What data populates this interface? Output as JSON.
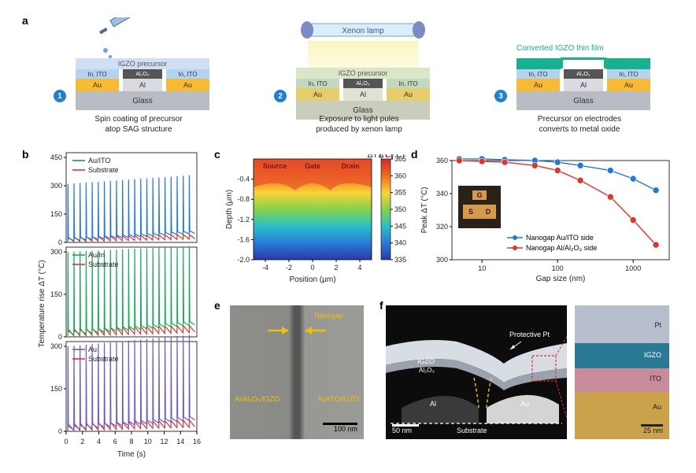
{
  "panel_labels": {
    "a": "a",
    "b": "b",
    "c": "c",
    "d": "d",
    "e": "e",
    "f": "f"
  },
  "a": {
    "step1": {
      "num": "1",
      "caption": "Spin coating of precursor\natop SAG structure",
      "layers": {
        "precursor": "IGZO precursor",
        "inito": "In, ITO",
        "alo": "Al₂O₃",
        "au": "Au",
        "al": "Al",
        "glass": "Glass"
      }
    },
    "step2": {
      "num": "2",
      "caption": "Exposure to light pules\nproduced by xenon lamp",
      "xenon": "Xenon lamp",
      "layers": {
        "precursor": "IGZO precursor",
        "inito": "In, ITO",
        "alo": "Al₂O₃",
        "au": "Au",
        "al": "Al",
        "glass": "Glass"
      }
    },
    "step3": {
      "num": "3",
      "caption": "Precursor on electrodes\nconverts to metal oxide",
      "converted": "Converted IGZO thin film",
      "layers": {
        "inito": "In, ITO",
        "alo": "Al₂O₃",
        "au": "Au",
        "al": "Al",
        "glass": "Glass"
      }
    }
  },
  "b": {
    "xlabel": "Time (s)",
    "ylabel": "Temperature rise ΔT (°C)",
    "x_ticks": [
      0,
      2,
      4,
      6,
      8,
      10,
      12,
      14,
      16
    ],
    "subplots": [
      {
        "legend1": "Au/ITO",
        "legend2": "Substrate",
        "color1": "#1f77e0",
        "color2": "#e0342c",
        "ylim": [
          0,
          450
        ],
        "yticks": [
          0,
          150,
          300,
          450
        ],
        "baseline_start": 10,
        "baseline_end": 48,
        "peak_start": 310,
        "peak_end": 355
      },
      {
        "legend1": "Au/In",
        "legend2": "Substrate",
        "color1": "#1aa85a",
        "color2": "#e0342c",
        "ylim": [
          0,
          300
        ],
        "yticks": [
          0,
          150,
          300
        ],
        "baseline_start": 8,
        "baseline_end": 42,
        "peak_start": 300,
        "peak_end": 320
      },
      {
        "legend1": "Au",
        "legend2": "Substrate",
        "color1": "#6a5ad0",
        "color2": "#e0342c",
        "ylim": [
          0,
          300
        ],
        "yticks": [
          0,
          150,
          300
        ],
        "baseline_start": 6,
        "baseline_end": 40,
        "peak_start": 300,
        "peak_end": 340
      }
    ],
    "n_pulses": 21,
    "line_width": 1.2
  },
  "c": {
    "title": "ΔT (°C)",
    "xlabel": "Position (μm)",
    "ylabel": "Depth (μm)",
    "x_ticks": [
      -4,
      -2,
      0,
      2,
      4
    ],
    "y_ticks": [
      -0.4,
      -0.8,
      -1.2,
      -1.6,
      -2.0
    ],
    "annotations": [
      "Source",
      "Gate",
      "Drain"
    ],
    "colorbar": {
      "min": 335,
      "max": 365,
      "stops": [
        {
          "v": 365,
          "c": "#d7262a"
        },
        {
          "v": 360,
          "c": "#f26a1f"
        },
        {
          "v": 355,
          "c": "#fbd335"
        },
        {
          "v": 350,
          "c": "#86d24a"
        },
        {
          "v": 345,
          "c": "#29c1c8"
        },
        {
          "v": 340,
          "c": "#2a7bd6"
        },
        {
          "v": 335,
          "c": "#2b3aa8"
        }
      ],
      "ticks": [
        335,
        340,
        345,
        350,
        355,
        360,
        365
      ]
    }
  },
  "d": {
    "xlabel": "Gap size (nm)",
    "ylabel": "Peak ΔT (°C)",
    "xscale": "log",
    "x_ticks": [
      10,
      100,
      1000
    ],
    "ylim": [
      300,
      360
    ],
    "y_ticks": [
      300,
      320,
      340,
      360
    ],
    "series": [
      {
        "label": "Nanogap Au/ITO side",
        "color": "#1f77e0",
        "marker": "circle",
        "points": [
          [
            5,
            361
          ],
          [
            10,
            361
          ],
          [
            20,
            360.5
          ],
          [
            50,
            360
          ],
          [
            100,
            359
          ],
          [
            200,
            357
          ],
          [
            500,
            354
          ],
          [
            1000,
            349
          ],
          [
            2000,
            342
          ]
        ]
      },
      {
        "label": "Nanogap Al/Al₂O₃ side",
        "color": "#e0342c",
        "marker": "circle",
        "points": [
          [
            5,
            360
          ],
          [
            10,
            359.5
          ],
          [
            20,
            359
          ],
          [
            50,
            357
          ],
          [
            100,
            354
          ],
          [
            200,
            348
          ],
          [
            500,
            338
          ],
          [
            1000,
            324
          ],
          [
            2000,
            309
          ]
        ]
      }
    ],
    "inset": {
      "labels": [
        "G",
        "S",
        "D"
      ],
      "color": "#d69a4a"
    },
    "line_width": 1.4,
    "marker_size": 4
  },
  "e": {
    "labels": {
      "left": "Al/Al₂O₃/IGZO",
      "right": "Au/ITO/IGZO",
      "gap": "Nanogap",
      "scale": "100 nm"
    },
    "arrow_color": "#f2c200",
    "bg": "#8a8a88"
  },
  "f": {
    "labels": {
      "pt": "Protective Pt",
      "igzo": "IGZO",
      "alo": "Al₂O₃",
      "al": "Al",
      "au": "Au",
      "substrate": "Substrate",
      "scale1": "50 nm",
      "scale2": "25 nm",
      "z_pt": "Pt",
      "z_igzo": "IGZO",
      "z_ito": "ITO",
      "z_au": "Au"
    },
    "colors": {
      "pt": "#b6bfcb",
      "igzo": "#216f8c",
      "ito": "#c88b9a",
      "au": "#c9a24b",
      "bg": "#111",
      "zoom_border": "#e0342c",
      "guide": "#e8c534"
    }
  },
  "typography": {
    "panel_label_fontsize": 14,
    "axis_fontsize": 10,
    "tick_fontsize": 9
  }
}
